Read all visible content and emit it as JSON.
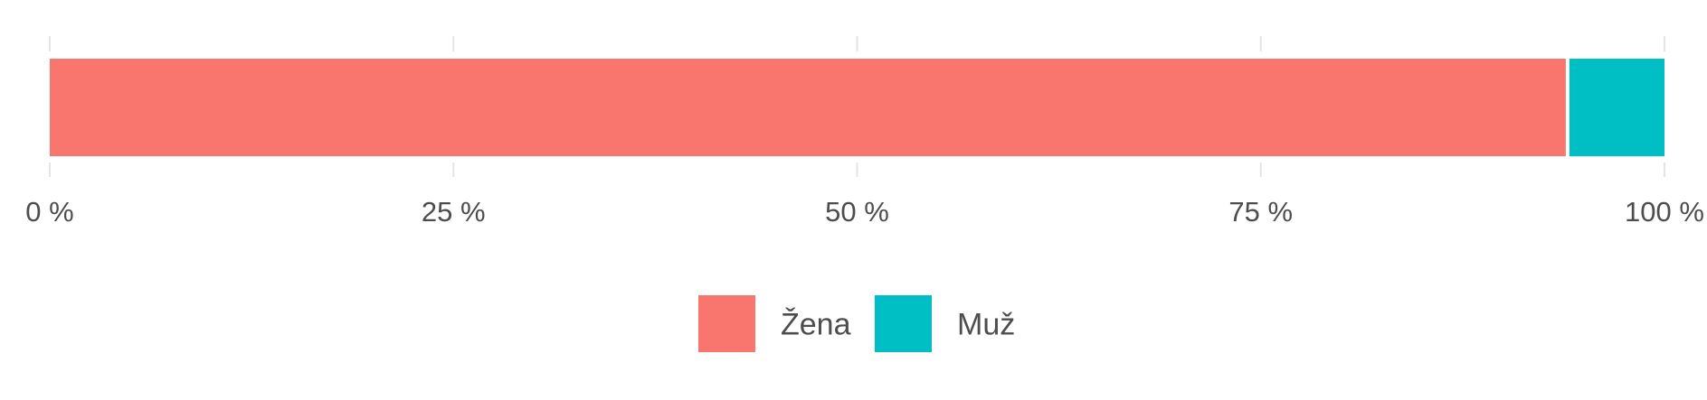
{
  "chart_data": {
    "type": "bar",
    "orientation": "horizontal",
    "stacked": true,
    "categories": [
      ""
    ],
    "series": [
      {
        "name": "Žena",
        "values": [
          0.94
        ],
        "color": "#f8766d"
      },
      {
        "name": "Muž",
        "values": [
          0.06
        ],
        "color": "#00bfc4"
      }
    ],
    "title": "",
    "xlabel": "",
    "ylabel": "",
    "xlim": [
      0,
      1
    ],
    "x_ticks": [
      0,
      0.25,
      0.5,
      0.75,
      1
    ],
    "x_tick_labels": [
      "0 %",
      "25 %",
      "50 %",
      "75 %",
      "100 %"
    ],
    "grid": false,
    "legend": {
      "position": "bottom",
      "entries": [
        "Žena",
        "Muž"
      ]
    }
  }
}
